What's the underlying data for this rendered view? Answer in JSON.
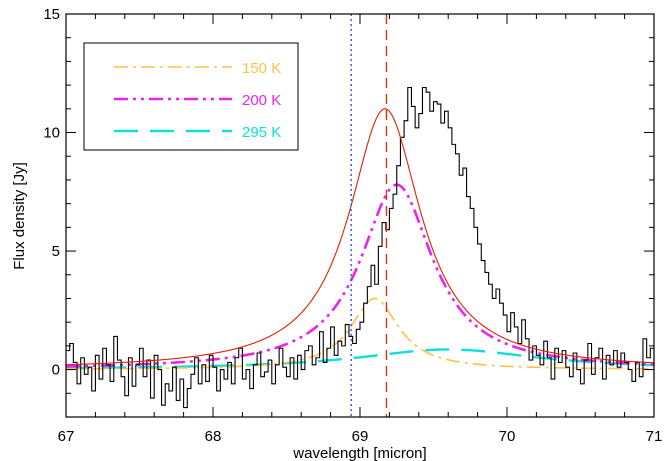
{
  "chart_data": {
    "type": "line",
    "xlabel": "wavelength [micron]",
    "ylabel": "Flux density [Jy]",
    "xlim": [
      67,
      71
    ],
    "ylim": [
      -2,
      15
    ],
    "x_ticks": [
      67,
      68,
      69,
      70,
      71
    ],
    "x_tick_labels": [
      "67",
      "68",
      "69",
      "70",
      "71"
    ],
    "y_ticks": [
      0,
      5,
      10,
      15
    ],
    "y_tick_labels": [
      "0",
      "5",
      "10",
      "15"
    ],
    "legend_position": "top-left",
    "vlines": [
      {
        "x": 68.94,
        "style": "dotted",
        "color": "#3355ee"
      },
      {
        "x": 69.18,
        "style": "dashed",
        "color": "#dd3311"
      }
    ],
    "series": [
      {
        "name": "150 K",
        "style": "dash-dot",
        "color": "#ffc04a",
        "profile": {
          "center": 69.1,
          "amplitude": 3.0,
          "fwhm": 0.4
        }
      },
      {
        "name": "200 K",
        "style": "dash-dot-dot",
        "color": "#ee22ee",
        "profile": {
          "center": 69.25,
          "amplitude": 7.8,
          "fwhm": 0.6
        }
      },
      {
        "name": "295 K",
        "style": "long-dash",
        "color": "#11dddd",
        "profile": {
          "center": 69.6,
          "amplitude": 0.85,
          "fwhm": 1.5
        }
      },
      {
        "style": "solid",
        "color": "#dd2200",
        "profile": {
          "center": 69.17,
          "amplitude": 11.0,
          "fwhm": 0.6
        }
      },
      {
        "style": "histogram",
        "color": "#000000",
        "x_start": 67.0,
        "x_step": 0.025,
        "y": [
          0.8,
          1.1,
          0.3,
          -0.6,
          0.5,
          -0.2,
          0.1,
          -0.9,
          0.6,
          -0.4,
          0.9,
          0.2,
          -0.5,
          1.4,
          0.4,
          -0.3,
          -1.1,
          0.5,
          -0.7,
          0.2,
          0.9,
          -0.3,
          0.4,
          -1.2,
          0.6,
          0.0,
          -1.5,
          -0.6,
          -0.9,
          0.1,
          -1.3,
          -0.4,
          -1.6,
          -0.8,
          -0.2,
          0.5,
          -0.6,
          0.2,
          -0.5,
          0.6,
          0.1,
          -0.9,
          0.0,
          -0.4,
          0.3,
          -0.6,
          0.5,
          0.9,
          -0.4,
          0.0,
          -0.8,
          0.2,
          0.7,
          -0.3,
          -0.1,
          0.4,
          -0.6,
          0.2,
          0.9,
          0.1,
          -0.3,
          0.5,
          -0.4,
          0.6,
          0.0,
          0.8,
          1.0,
          0.2,
          0.5,
          1.6,
          0.3,
          0.9,
          1.8,
          0.6,
          1.2,
          1.0,
          1.9,
          1.4,
          1.1,
          1.7,
          2.0,
          2.8,
          3.5,
          4.4,
          3.6,
          5.2,
          6.2,
          5.9,
          6.8,
          7.4,
          8.6,
          9.8,
          10.5,
          11.9,
          11.1,
          10.2,
          10.8,
          11.9,
          11.7,
          10.9,
          11.3,
          11.2,
          10.4,
          10.9,
          10.2,
          9.5,
          9.1,
          8.2,
          8.5,
          7.3,
          6.8,
          6.0,
          5.3,
          4.6,
          4.1,
          3.6,
          3.0,
          3.4,
          2.8,
          2.3,
          1.6,
          2.4,
          1.8,
          1.1,
          2.1,
          1.3,
          0.4,
          1.0,
          0.6,
          0.2,
          1.2,
          0.5,
          -0.4,
          0.9,
          0.3,
          0.8,
          0.1,
          -0.3,
          0.7,
          0.0,
          -0.6,
          0.4,
          1.1,
          -0.2,
          0.5,
          0.9,
          -0.4,
          0.6,
          0.2,
          0.8,
          0.1,
          0.7,
          0.3,
          0.0,
          -0.5,
          0.3,
          -0.3,
          1.3,
          0.5,
          0.9,
          -0.4,
          0.2,
          0.8,
          0.4,
          -0.1,
          0.5
        ]
      }
    ]
  }
}
